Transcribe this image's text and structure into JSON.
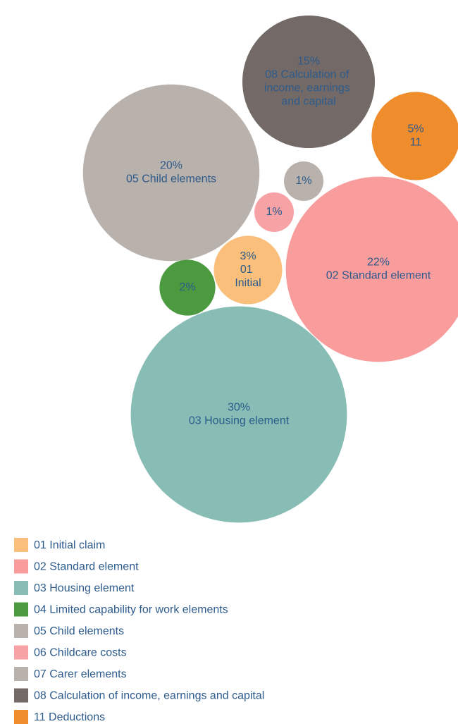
{
  "chart_data": {
    "type": "bubble",
    "categories": [
      "01 Initial claim",
      "02 Standard element",
      "03 Housing element",
      "04 Limited capability for work elements",
      "05 Child elements",
      "06 Childcare costs",
      "07 Carer elements",
      "08 Calculation of income, earnings and capital",
      "11 Deductions"
    ],
    "labels": [
      "01 Initial",
      "02 Standard element",
      "03 Housing element",
      null,
      "05 Child elements",
      null,
      null,
      "08 Calculation of income, earnings and capital",
      "11"
    ],
    "values": [
      3,
      22,
      30,
      2,
      20,
      1,
      1,
      15,
      5
    ],
    "value_labels": [
      "3%",
      "22%",
      "30%",
      "2%",
      "20%",
      "1%",
      "1%",
      "15%",
      "5%"
    ],
    "colors": [
      "#fbbf7c",
      "#f99c9c",
      "#87bdb5",
      "#4b9a40",
      "#b9b1ac",
      "#f7a3a6",
      "#b9b1ac",
      "#736a67",
      "#ef8c2b"
    ],
    "legend": "bottom-left"
  }
}
